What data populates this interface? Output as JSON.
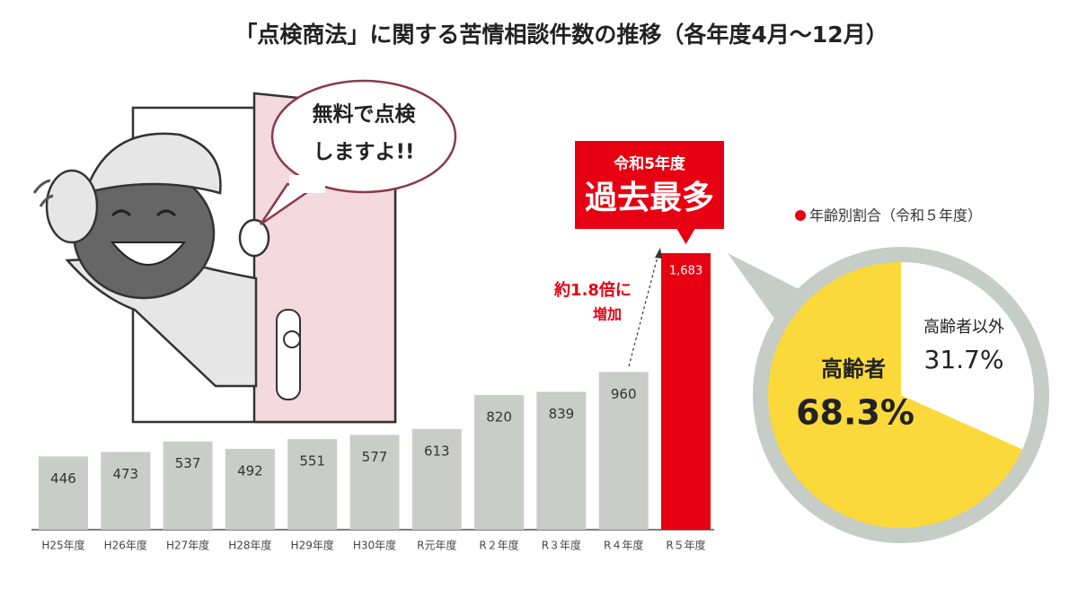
{
  "title": "「点検商法」に関する苦情相談件数の推移（各年度4月～12月）",
  "illustration": {
    "speech": [
      "無料で点検",
      "しますよ!!"
    ]
  },
  "chart_data": [
    {
      "type": "bar",
      "categories": [
        "H25年度",
        "H26年度",
        "H27年度",
        "H28年度",
        "H29年度",
        "H30年度",
        "R元年度",
        "R２年度",
        "R３年度",
        "R４年度",
        "R５年度"
      ],
      "values": [
        446,
        473,
        537,
        492,
        551,
        577,
        613,
        820,
        839,
        960,
        1683
      ],
      "value_labels": [
        "446",
        "473",
        "537",
        "492",
        "551",
        "577",
        "613",
        "820",
        "839",
        "960",
        "1,683"
      ],
      "colors": [
        "#c9cdc8",
        "#c9cdc8",
        "#c9cdc8",
        "#c9cdc8",
        "#c9cdc8",
        "#c9cdc8",
        "#c9cdc8",
        "#c9cdc8",
        "#c9cdc8",
        "#c9cdc8",
        "#e60012"
      ],
      "annotations": [
        "令和5年度",
        "過去最多",
        "約1.8倍に",
        "増加"
      ]
    },
    {
      "type": "pie",
      "title": "年齢別割合（令和５年度）",
      "categories": [
        "高齢者",
        "高齢者以外"
      ],
      "values": [
        68.3,
        31.7
      ],
      "value_labels": [
        "68.3%",
        "31.7%"
      ],
      "colors": [
        "#fcd93a",
        "#ffffff"
      ]
    }
  ]
}
